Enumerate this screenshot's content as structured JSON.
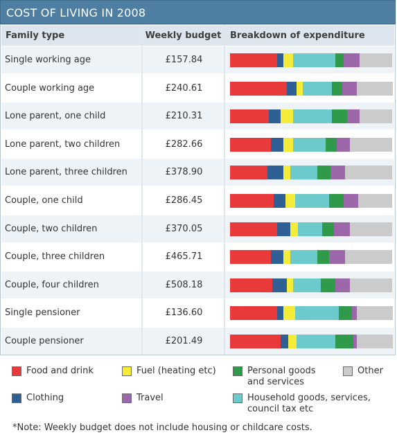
{
  "title": "COST OF LIVING IN 2008",
  "headers": {
    "family_type": "Family type",
    "weekly_budget": "Weekly budget",
    "breakdown": "Breakdown of expenditure"
  },
  "colors": {
    "food": "#e8393b",
    "clothing": "#2e5f95",
    "fuel": "#f5ec3a",
    "household": "#6cc9cc",
    "personal": "#2e9a4a",
    "travel": "#9b67a8",
    "other": "#cbcbcb"
  },
  "legend": [
    {
      "key": "food",
      "label": "Food and drink"
    },
    {
      "key": "fuel",
      "label": "Fuel (heating etc)"
    },
    {
      "key": "personal",
      "label": "Personal goods and services"
    },
    {
      "key": "other",
      "label": "Other"
    },
    {
      "key": "clothing",
      "label": "Clothing"
    },
    {
      "key": "travel",
      "label": "Travel"
    },
    {
      "key": "household",
      "label": "Household goods, services, council tax etc"
    }
  ],
  "note": "*Note: Weekly budget does not include housing or childcare costs.",
  "chart_data": {
    "type": "bar",
    "stacked": true,
    "orientation": "horizontal",
    "unit": "percent of weekly budget",
    "title": "COST OF LIVING IN 2008",
    "categories": [
      "Single working age",
      "Couple working age",
      "Lone parent, one child",
      "Lone parent, two children",
      "Lone parent, three children",
      "Couple, one child",
      "Couple, two children",
      "Couple, three children",
      "Couple, four children",
      "Single pensioner",
      "Couple pensioner"
    ],
    "budgets": [
      "£157.84",
      "£240.61",
      "£210.31",
      "£282.66",
      "£378.90",
      "£286.45",
      "£370.05",
      "£465.71",
      "£508.18",
      "£136.60",
      "£201.49"
    ],
    "series": [
      {
        "name": "Food and drink",
        "key": "food",
        "values": [
          29,
          35,
          24,
          25,
          23,
          27,
          29,
          25,
          26,
          29,
          31
        ]
      },
      {
        "name": "Clothing",
        "key": "clothing",
        "values": [
          4,
          6,
          7,
          8,
          10,
          7,
          8,
          8,
          9,
          4,
          5
        ]
      },
      {
        "name": "Fuel (heating etc)",
        "key": "fuel",
        "values": [
          6,
          4,
          8,
          6,
          4,
          6,
          5,
          4,
          4,
          7,
          5
        ]
      },
      {
        "name": "Household goods, services, council tax etc",
        "key": "household",
        "values": [
          26,
          18,
          24,
          20,
          17,
          21,
          15,
          17,
          17,
          27,
          24
        ]
      },
      {
        "name": "Personal goods and services",
        "key": "personal",
        "values": [
          5,
          6,
          9,
          7,
          8,
          9,
          7,
          7,
          9,
          8,
          11
        ]
      },
      {
        "name": "Travel",
        "key": "travel",
        "values": [
          10,
          9,
          8,
          8,
          9,
          9,
          10,
          10,
          9,
          3,
          2
        ]
      },
      {
        "name": "Other",
        "key": "other",
        "values": [
          20,
          22,
          20,
          26,
          29,
          21,
          26,
          29,
          26,
          22,
          22
        ]
      }
    ]
  }
}
